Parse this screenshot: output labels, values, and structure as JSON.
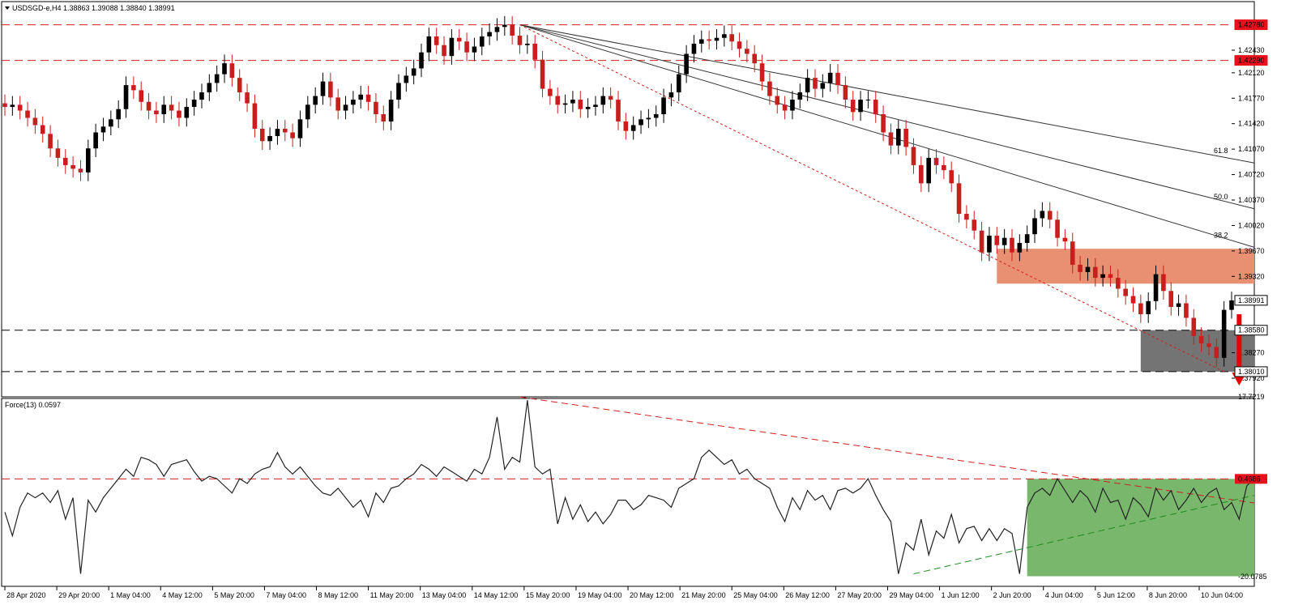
{
  "header": {
    "symbol_line": "USDSGD-e,H4  1.38863 1.39088 1.38840 1.38991",
    "dropdown_icon": "triangle-down-icon"
  },
  "colors": {
    "bull": "#000000",
    "bear": "#c81e1e",
    "level_line": "#d21e1e",
    "label_bg": "#e8101a",
    "resistance_zone": "#e98f72",
    "support_zone": "#747474",
    "green_zone": "#79b76d",
    "arrow": "#e80000",
    "fan": "#333333",
    "indicator_line": "#222222"
  },
  "chart_data": [
    {
      "type": "candlestick",
      "title": "USDSGD-e,H4",
      "ohlc_readout": {
        "open": 1.38863,
        "high": 1.39088,
        "low": 1.3884,
        "close": 1.38991
      },
      "ylim": [
        1.3782,
        1.4292
      ],
      "price_ticks": [
        "1.42430",
        "1.42120",
        "1.41770",
        "1.41420",
        "1.41070",
        "1.40720",
        "1.40370",
        "1.40020",
        "1.39670",
        "1.39320",
        "1.38270",
        "1.37920"
      ],
      "level_labels": [
        {
          "value": 1.4278,
          "label": "1.42780",
          "highlight": true
        },
        {
          "value": 1.4229,
          "label": "1.42290",
          "highlight": true
        },
        {
          "value": 1.38991,
          "label": "1.38991",
          "highlight": false,
          "current": true
        },
        {
          "value": 1.3858,
          "label": "1.38580",
          "highlight": false
        },
        {
          "value": 1.3801,
          "label": "1.38010",
          "highlight": false
        }
      ],
      "horizontal_levels": [
        {
          "value": 1.4278,
          "color": "red",
          "style": "dashed"
        },
        {
          "value": 1.4229,
          "color": "red",
          "style": "dashed"
        },
        {
          "value": 1.3858,
          "color": "black",
          "style": "dashed"
        },
        {
          "value": 1.3801,
          "color": "black",
          "style": "dashed"
        }
      ],
      "zones": [
        {
          "name": "resistance",
          "from_bar": 131,
          "to_bar": 165,
          "low": 1.3922,
          "high": 1.397
        },
        {
          "name": "support",
          "from_bar": 150,
          "to_bar": 165,
          "low": 1.3801,
          "high": 1.3858
        }
      ],
      "fibonacci_fan": {
        "anchor_bar": 68,
        "anchor_price": 1.4278,
        "levels": [
          {
            "label": "61.8",
            "end_bar": 165,
            "end_price": 1.4088
          },
          {
            "label": "50.0",
            "end_bar": 165,
            "end_price": 1.4025
          },
          {
            "label": "38.2",
            "end_bar": 165,
            "end_price": 1.3972
          }
        ]
      },
      "trendline": {
        "from_bar": 68,
        "from_price": 1.4278,
        "to_bar": 161,
        "to_price": 1.3801,
        "style": "dotted-red"
      },
      "arrow": {
        "bar": 163,
        "from_price": 1.388,
        "to_price": 1.3782,
        "direction": "down"
      },
      "x_labels": [
        "28 Apr 2020",
        "29 Apr 20:00",
        "1 May 04:00",
        "4 May 12:00",
        "5 May 20:00",
        "7 May 04:00",
        "8 May 12:00",
        "11 May 20:00",
        "13 May 04:00",
        "14 May 12:00",
        "15 May 20:00",
        "19 May 04:00",
        "20 May 12:00",
        "21 May 20:00",
        "25 May 04:00",
        "26 May 12:00",
        "27 May 20:00",
        "29 May 04:00",
        "1 Jun 12:00",
        "2 Jun 20:00",
        "4 Jun 04:00",
        "5 Jun 12:00",
        "8 Jun 20:00",
        "10 Jun 04:00"
      ],
      "closes": [
        1.4165,
        1.4168,
        1.416,
        1.415,
        1.414,
        1.4128,
        1.4108,
        1.4095,
        1.4085,
        1.408,
        1.4075,
        1.4108,
        1.413,
        1.4138,
        1.4148,
        1.4162,
        1.4195,
        1.4188,
        1.4172,
        1.416,
        1.4155,
        1.4168,
        1.416,
        1.415,
        1.4165,
        1.4175,
        1.4185,
        1.4198,
        1.421,
        1.4225,
        1.4205,
        1.4185,
        1.417,
        1.4135,
        1.4118,
        1.4125,
        1.4135,
        1.413,
        1.4122,
        1.4148,
        1.4168,
        1.418,
        1.42,
        1.4178,
        1.416,
        1.4168,
        1.4175,
        1.4182,
        1.4172,
        1.4155,
        1.4145,
        1.4175,
        1.4198,
        1.4208,
        1.4218,
        1.424,
        1.4262,
        1.425,
        1.4235,
        1.426,
        1.4255,
        1.424,
        1.4248,
        1.4262,
        1.4268,
        1.4275,
        1.4278,
        1.4263,
        1.425,
        1.4252,
        1.423,
        1.419,
        1.418,
        1.4168,
        1.417,
        1.4175,
        1.4162,
        1.4165,
        1.4168,
        1.418,
        1.4175,
        1.4145,
        1.4132,
        1.414,
        1.4148,
        1.415,
        1.4155,
        1.4178,
        1.4185,
        1.421,
        1.4238,
        1.4252,
        1.4258,
        1.4256,
        1.426,
        1.4265,
        1.4255,
        1.4245,
        1.4238,
        1.4225,
        1.42,
        1.418,
        1.4168,
        1.416,
        1.4175,
        1.4185,
        1.4205,
        1.419,
        1.4198,
        1.4212,
        1.4195,
        1.4175,
        1.4158,
        1.4175,
        1.4175,
        1.4155,
        1.413,
        1.4112,
        1.4135,
        1.411,
        1.4085,
        1.406,
        1.4095,
        1.4085,
        1.4078,
        1.406,
        1.4018,
        1.401,
        1.3995,
        1.3965,
        1.3988,
        1.3975,
        1.3985,
        1.3965,
        1.3978,
        1.399,
        1.4012,
        1.4022,
        1.401,
        1.3985,
        1.398,
        1.3948,
        1.3938,
        1.3945,
        1.393,
        1.3935,
        1.393,
        1.3915,
        1.3905,
        1.3895,
        1.388,
        1.3898,
        1.3935,
        1.3912,
        1.389,
        1.3895,
        1.3875,
        1.385,
        1.384,
        1.3835,
        1.382,
        1.3886,
        1.3899
      ],
      "force_index": {
        "label": "Force(13) 0.0597",
        "ylim": [
          -20.0785,
          17.7219
        ],
        "tick_top": "17.7219",
        "tick_bottom": "-20.0785",
        "level": {
          "value": 0.4686,
          "label": "0.4686"
        },
        "values": [
          -6.5,
          -11.5,
          -5.5,
          -2.5,
          -3.5,
          -2.5,
          -4.5,
          -2.0,
          -8.0,
          -3.5,
          -19.5,
          -4.0,
          -6.5,
          -3.5,
          -1.5,
          0.5,
          2.5,
          1.0,
          5.0,
          4.5,
          3.5,
          1.0,
          3.5,
          4.0,
          4.5,
          2.0,
          0.0,
          1.0,
          0.5,
          -1.0,
          -2.5,
          0.5,
          -0.5,
          1.5,
          2.5,
          3.0,
          6.0,
          3.0,
          1.5,
          3.0,
          1.0,
          -1.0,
          -2.5,
          -3.0,
          -1.5,
          -3.5,
          -5.5,
          -4.0,
          -7.5,
          -2.5,
          -4.5,
          -1.5,
          -1.0,
          0.5,
          1.5,
          3.5,
          2.5,
          1.0,
          3.0,
          2.0,
          1.0,
          0.0,
          2.5,
          1.5,
          5.0,
          13.5,
          2.5,
          5.0,
          4.0,
          17.0,
          3.0,
          1.5,
          2.5,
          -9.0,
          -3.5,
          -8.0,
          -5.0,
          -8.5,
          -6.5,
          -9.0,
          -7.0,
          -4.0,
          -4.0,
          -6.0,
          -5.0,
          -3.0,
          -3.5,
          -4.0,
          -5.5,
          -1.5,
          -0.5,
          0.5,
          5.0,
          6.5,
          5.0,
          3.5,
          4.5,
          1.5,
          2.5,
          0.5,
          -0.5,
          -1.5,
          -5.5,
          -8.5,
          -3.5,
          -6.0,
          -2.0,
          -4.0,
          -3.0,
          -6.0,
          -2.0,
          -1.5,
          -2.5,
          -1.5,
          0.5,
          -3.0,
          -6.0,
          -8.5,
          -19.5,
          -13.0,
          -14.5,
          -8.0,
          -15.5,
          -10.5,
          -12.0,
          -7.0,
          -13.0,
          -10.0,
          -9.5,
          -12.5,
          -10.0,
          -12.5,
          -10.0,
          -11.0,
          -19.5,
          -5.5,
          -2.5,
          -1.5,
          -3.0,
          0.5,
          -2.0,
          -4.5,
          -2.0,
          -3.5,
          -6.5,
          -1.5,
          -4.5,
          -4.0,
          -8.0,
          -3.5,
          -5.0,
          -7.5,
          -1.5,
          -4.0,
          -2.0,
          -6.0,
          -4.0,
          -1.5,
          -4.5,
          -2.5,
          -1.5,
          -6.0,
          -4.5,
          -8.0,
          -1.0,
          0.5
        ],
        "red_trend": {
          "from_bar": 68,
          "from_value": 17.7,
          "to_bar": 165,
          "to_value": -4.6
        },
        "green_trend": {
          "from_bar": 120,
          "from_value": -19.5,
          "to_bar": 165,
          "to_value": -3.0
        },
        "green_zone": {
          "from_bar": 135,
          "to_bar": 165,
          "low": -20.0,
          "high": 0.4686
        }
      }
    }
  ]
}
